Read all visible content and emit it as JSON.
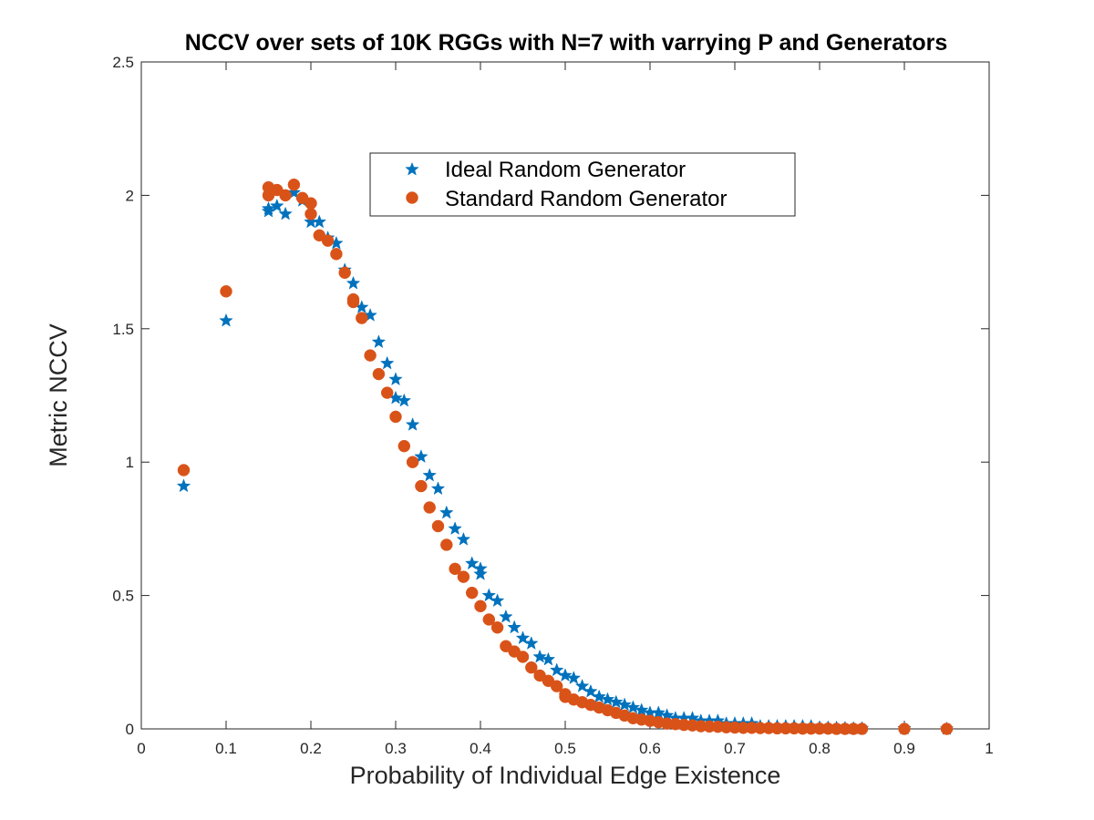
{
  "chart_data": {
    "type": "scatter",
    "title": "NCCV over sets of 10K RGGs with N=7 with varrying P and Generators",
    "xlabel": "Probability of Individual Edge Existence",
    "ylabel": "Metric NCCV",
    "xlim": [
      0,
      1
    ],
    "ylim": [
      0,
      2.5
    ],
    "xticks": [
      "0",
      "0.1",
      "0.2",
      "0.3",
      "0.4",
      "0.5",
      "0.6",
      "0.7",
      "0.8",
      "0.9",
      "1"
    ],
    "yticks": [
      "0",
      "0.5",
      "1",
      "1.5",
      "2",
      "2.5"
    ],
    "grid": false,
    "legend_position": "top-center",
    "series": [
      {
        "name": "Ideal Random Generator",
        "marker": "star",
        "color": "#0072BD",
        "points": [
          [
            0.05,
            0.91
          ],
          [
            0.1,
            1.53
          ],
          [
            0.15,
            1.94
          ],
          [
            0.15,
            1.95
          ],
          [
            0.16,
            1.96
          ],
          [
            0.17,
            1.93
          ],
          [
            0.18,
            2.01
          ],
          [
            0.19,
            1.98
          ],
          [
            0.2,
            1.9
          ],
          [
            0.21,
            1.9
          ],
          [
            0.22,
            1.84
          ],
          [
            0.23,
            1.82
          ],
          [
            0.24,
            1.72
          ],
          [
            0.25,
            1.67
          ],
          [
            0.26,
            1.58
          ],
          [
            0.27,
            1.55
          ],
          [
            0.28,
            1.45
          ],
          [
            0.29,
            1.37
          ],
          [
            0.3,
            1.31
          ],
          [
            0.3,
            1.24
          ],
          [
            0.31,
            1.23
          ],
          [
            0.32,
            1.14
          ],
          [
            0.33,
            1.02
          ],
          [
            0.34,
            0.95
          ],
          [
            0.35,
            0.9
          ],
          [
            0.36,
            0.81
          ],
          [
            0.37,
            0.75
          ],
          [
            0.38,
            0.71
          ],
          [
            0.39,
            0.62
          ],
          [
            0.4,
            0.6
          ],
          [
            0.4,
            0.58
          ],
          [
            0.41,
            0.5
          ],
          [
            0.42,
            0.48
          ],
          [
            0.43,
            0.42
          ],
          [
            0.44,
            0.38
          ],
          [
            0.45,
            0.34
          ],
          [
            0.46,
            0.32
          ],
          [
            0.47,
            0.27
          ],
          [
            0.48,
            0.26
          ],
          [
            0.49,
            0.22
          ],
          [
            0.5,
            0.2
          ],
          [
            0.51,
            0.19
          ],
          [
            0.52,
            0.16
          ],
          [
            0.53,
            0.14
          ],
          [
            0.54,
            0.12
          ],
          [
            0.55,
            0.11
          ],
          [
            0.56,
            0.1
          ],
          [
            0.57,
            0.09
          ],
          [
            0.58,
            0.08
          ],
          [
            0.59,
            0.07
          ],
          [
            0.6,
            0.06
          ],
          [
            0.61,
            0.06
          ],
          [
            0.62,
            0.05
          ],
          [
            0.63,
            0.04
          ],
          [
            0.64,
            0.04
          ],
          [
            0.65,
            0.04
          ],
          [
            0.66,
            0.03
          ],
          [
            0.67,
            0.03
          ],
          [
            0.68,
            0.03
          ],
          [
            0.69,
            0.02
          ],
          [
            0.7,
            0.02
          ],
          [
            0.71,
            0.02
          ],
          [
            0.72,
            0.02
          ],
          [
            0.73,
            0.01
          ],
          [
            0.74,
            0.01
          ],
          [
            0.75,
            0.01
          ],
          [
            0.76,
            0.01
          ],
          [
            0.77,
            0.01
          ],
          [
            0.78,
            0.01
          ],
          [
            0.79,
            0.01
          ],
          [
            0.8,
            0.005
          ],
          [
            0.81,
            0.005
          ],
          [
            0.82,
            0.004
          ],
          [
            0.83,
            0.003
          ],
          [
            0.84,
            0.002
          ],
          [
            0.85,
            0.002
          ],
          [
            0.9,
            0.001
          ],
          [
            0.95,
            0.0
          ]
        ]
      },
      {
        "name": "Standard Random Generator",
        "marker": "circle",
        "color": "#D95319",
        "points": [
          [
            0.05,
            0.97
          ],
          [
            0.1,
            1.64
          ],
          [
            0.15,
            2.03
          ],
          [
            0.15,
            2.0
          ],
          [
            0.16,
            2.02
          ],
          [
            0.17,
            2.0
          ],
          [
            0.18,
            2.04
          ],
          [
            0.19,
            1.99
          ],
          [
            0.2,
            1.97
          ],
          [
            0.2,
            1.93
          ],
          [
            0.21,
            1.85
          ],
          [
            0.22,
            1.83
          ],
          [
            0.23,
            1.78
          ],
          [
            0.24,
            1.71
          ],
          [
            0.25,
            1.61
          ],
          [
            0.25,
            1.6
          ],
          [
            0.26,
            1.54
          ],
          [
            0.27,
            1.4
          ],
          [
            0.28,
            1.33
          ],
          [
            0.29,
            1.26
          ],
          [
            0.3,
            1.17
          ],
          [
            0.31,
            1.06
          ],
          [
            0.32,
            1.0
          ],
          [
            0.33,
            0.91
          ],
          [
            0.34,
            0.83
          ],
          [
            0.35,
            0.76
          ],
          [
            0.36,
            0.69
          ],
          [
            0.37,
            0.6
          ],
          [
            0.38,
            0.57
          ],
          [
            0.39,
            0.51
          ],
          [
            0.4,
            0.46
          ],
          [
            0.41,
            0.41
          ],
          [
            0.42,
            0.38
          ],
          [
            0.43,
            0.31
          ],
          [
            0.44,
            0.29
          ],
          [
            0.45,
            0.27
          ],
          [
            0.46,
            0.23
          ],
          [
            0.47,
            0.2
          ],
          [
            0.48,
            0.18
          ],
          [
            0.49,
            0.16
          ],
          [
            0.5,
            0.13
          ],
          [
            0.5,
            0.12
          ],
          [
            0.51,
            0.11
          ],
          [
            0.52,
            0.1
          ],
          [
            0.53,
            0.09
          ],
          [
            0.54,
            0.08
          ],
          [
            0.55,
            0.07
          ],
          [
            0.56,
            0.06
          ],
          [
            0.57,
            0.05
          ],
          [
            0.58,
            0.04
          ],
          [
            0.59,
            0.035
          ],
          [
            0.6,
            0.03
          ],
          [
            0.61,
            0.025
          ],
          [
            0.62,
            0.02
          ],
          [
            0.63,
            0.018
          ],
          [
            0.64,
            0.015
          ],
          [
            0.65,
            0.013
          ],
          [
            0.66,
            0.01
          ],
          [
            0.67,
            0.009
          ],
          [
            0.68,
            0.008
          ],
          [
            0.69,
            0.006
          ],
          [
            0.7,
            0.005
          ],
          [
            0.71,
            0.004
          ],
          [
            0.72,
            0.004
          ],
          [
            0.73,
            0.003
          ],
          [
            0.74,
            0.003
          ],
          [
            0.75,
            0.002
          ],
          [
            0.76,
            0.002
          ],
          [
            0.77,
            0.002
          ],
          [
            0.78,
            0.001
          ],
          [
            0.79,
            0.001
          ],
          [
            0.8,
            0.001
          ],
          [
            0.81,
            0.001
          ],
          [
            0.82,
            0.0
          ],
          [
            0.83,
            0.0
          ],
          [
            0.84,
            0.0
          ],
          [
            0.85,
            0.0
          ],
          [
            0.9,
            0.0
          ],
          [
            0.95,
            0.0
          ]
        ]
      }
    ]
  }
}
